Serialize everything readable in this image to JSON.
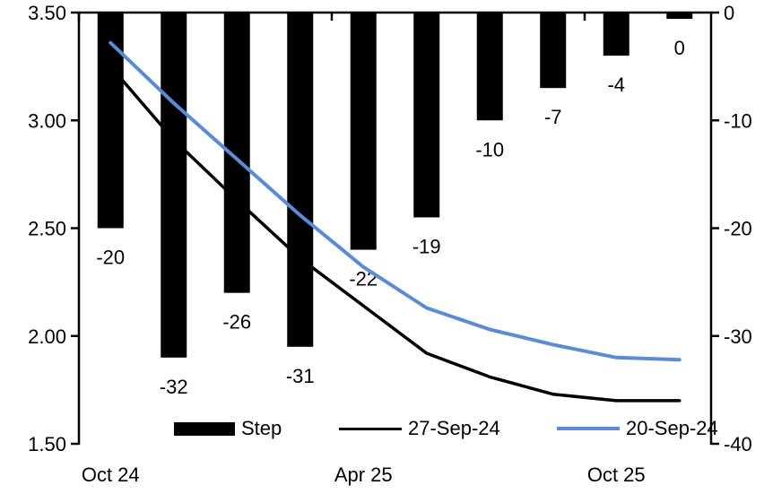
{
  "chart_data": {
    "type": "combo",
    "title": "",
    "n_categories": 10,
    "x_tick_labels": [
      {
        "label": "Oct 24",
        "slot": 0
      },
      {
        "label": "Apr 25",
        "slot": 4
      },
      {
        "label": "Oct 25",
        "slot": 8
      }
    ],
    "left_axis": {
      "min": 1.5,
      "max": 3.5,
      "tick_labels": [
        "3.50",
        "3.00",
        "2.50",
        "2.00",
        "1.50"
      ]
    },
    "right_axis": {
      "min": -40,
      "max": 0,
      "tick_labels": [
        "0",
        "-10",
        "-20",
        "-30",
        "-40"
      ]
    },
    "grid": false,
    "legend_position": "bottom-inside",
    "series": [
      {
        "name": "Step",
        "type": "bar",
        "axis": "right",
        "color": "#000000",
        "values": [
          -20,
          -32,
          -26,
          -31,
          -22,
          -19,
          -10,
          -7,
          -4,
          0
        ],
        "labels": [
          "-20",
          "-32",
          "-26",
          "-31",
          "-22",
          "-19",
          "-10",
          "-7",
          "-4",
          "0"
        ]
      },
      {
        "name": "27-Sep-24",
        "type": "line",
        "axis": "left",
        "color": "#000000",
        "values": [
          3.25,
          2.91,
          2.63,
          2.36,
          2.14,
          1.92,
          1.81,
          1.73,
          1.7,
          1.7
        ]
      },
      {
        "name": "20-Sep-24",
        "type": "line",
        "axis": "left",
        "color": "#5B8BD5",
        "values": [
          3.36,
          3.08,
          2.82,
          2.56,
          2.32,
          2.13,
          2.03,
          1.96,
          1.9,
          1.89
        ]
      }
    ]
  }
}
